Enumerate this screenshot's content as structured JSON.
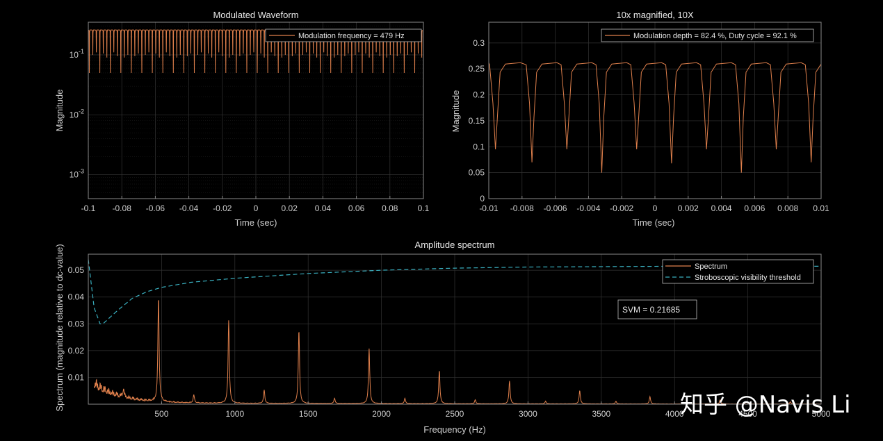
{
  "chart_data": [
    {
      "type": "line",
      "title": "Modulated Waveform",
      "xlabel": "Time (sec)",
      "ylabel": "Magnitude",
      "xlim": [
        -0.1,
        0.1
      ],
      "ylim": [
        0.0004,
        0.35
      ],
      "yscale": "log",
      "xticks": [
        "-0.1",
        "-0.08",
        "-0.06",
        "-0.04",
        "-0.02",
        "0",
        "0.02",
        "0.04",
        "0.06",
        "0.08",
        "0.1"
      ],
      "yticks": [
        {
          "v": 0.1,
          "base": "10",
          "exp": "-1"
        },
        {
          "v": 0.01,
          "base": "10",
          "exp": "-2"
        },
        {
          "v": 0.001,
          "base": "10",
          "exp": "-3"
        }
      ],
      "legend": [
        "Modulation frequency = 479 Hz"
      ],
      "legend_position": "top-right",
      "grid": true,
      "series": [
        {
          "name": "Modulation frequency = 479 Hz",
          "color": "#e0804c",
          "high": 0.26,
          "dip_min": [
            0.05,
            0.09
          ],
          "period_sec": 0.002088
        }
      ]
    },
    {
      "type": "line",
      "title": "10x magnified, 10X",
      "xlabel": "Time (sec)",
      "ylabel": "Magnitude",
      "xlim": [
        -0.01,
        0.01
      ],
      "ylim": [
        0,
        0.34
      ],
      "xticks": [
        "-0.01",
        "-0.008",
        "-0.006",
        "-0.004",
        "-0.002",
        "0",
        "0.002",
        "0.004",
        "0.006",
        "0.008",
        "0.01"
      ],
      "yticks": [
        "0",
        "0.05",
        "0.1",
        "0.15",
        "0.2",
        "0.25",
        "0.3"
      ],
      "legend": [
        "Modulation depth = 82.4 %, Duty cycle = 92.1 %"
      ],
      "legend_position": "top-right",
      "grid": true,
      "series": [
        {
          "name": "Modulation depth = 82.4 %, Duty cycle = 92.1 %",
          "color": "#e0804c",
          "high": 0.262,
          "dips": [
            {
              "t": -0.0096,
              "min": 0.095
            },
            {
              "t": -0.0074,
              "min": 0.07
            },
            {
              "t": -0.0053,
              "min": 0.095
            },
            {
              "t": -0.0032,
              "min": 0.05
            },
            {
              "t": -0.0011,
              "min": 0.095
            },
            {
              "t": 0.001,
              "min": 0.068
            },
            {
              "t": 0.0031,
              "min": 0.095
            },
            {
              "t": 0.0052,
              "min": 0.05
            },
            {
              "t": 0.0073,
              "min": 0.095
            },
            {
              "t": 0.0094,
              "min": 0.07
            }
          ]
        }
      ]
    },
    {
      "type": "line",
      "title": "Amplitude spectrum",
      "xlabel": "Frequency (Hz)",
      "ylabel": "Spectrum (magnitude relative to dc-value)",
      "xlim": [
        0,
        5000
      ],
      "ylim": [
        0,
        0.056
      ],
      "xticks": [
        "500",
        "1000",
        "1500",
        "2000",
        "2500",
        "3000",
        "3500",
        "4000",
        "4500",
        "5000"
      ],
      "yticks": [
        "0.01",
        "0.02",
        "0.03",
        "0.04",
        "0.05"
      ],
      "legend": [
        "Spectrum",
        "Stroboscopic visibility threshold"
      ],
      "legend_position": "top-right",
      "annotation": "SVM = 0.21685",
      "grid": true,
      "series": [
        {
          "name": "Spectrum",
          "color": "#e0804c",
          "peaks": [
            [
              240,
              0.003
            ],
            [
              479,
              0.039
            ],
            [
              720,
              0.003
            ],
            [
              958,
              0.031
            ],
            [
              1200,
              0.005
            ],
            [
              1437,
              0.0275
            ],
            [
              1680,
              0.002
            ],
            [
              1916,
              0.0205
            ],
            [
              2160,
              0.002
            ],
            [
              2395,
              0.0125
            ],
            [
              2640,
              0.0015
            ],
            [
              2874,
              0.0085
            ],
            [
              3120,
              0.001
            ],
            [
              3353,
              0.005
            ],
            [
              3600,
              0.001
            ],
            [
              3832,
              0.0027
            ],
            [
              4080,
              0.0005
            ],
            [
              4311,
              0.0015
            ],
            [
              4790,
              0.0008
            ]
          ]
        },
        {
          "name": "Stroboscopic visibility threshold",
          "color": "#3ab0c0",
          "points": [
            [
              0,
              0.054
            ],
            [
              40,
              0.036
            ],
            [
              80,
              0.03
            ],
            [
              100,
              0.03
            ],
            [
              150,
              0.0325
            ],
            [
              200,
              0.035
            ],
            [
              300,
              0.0395
            ],
            [
              400,
              0.042
            ],
            [
              500,
              0.0436
            ],
            [
              700,
              0.0455
            ],
            [
              1000,
              0.047
            ],
            [
              1500,
              0.0488
            ],
            [
              2000,
              0.05
            ],
            [
              2500,
              0.0508
            ],
            [
              3000,
              0.0512
            ],
            [
              4000,
              0.0515
            ],
            [
              5000,
              0.0515
            ]
          ]
        }
      ]
    }
  ],
  "watermark": "知乎 @Navis Li"
}
